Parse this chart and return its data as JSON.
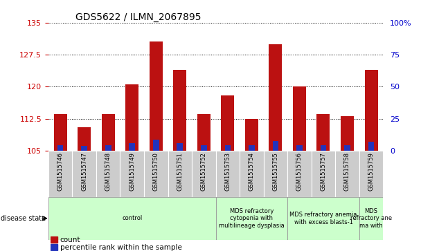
{
  "title": "GDS5622 / ILMN_2067895",
  "samples": [
    "GSM1515746",
    "GSM1515747",
    "GSM1515748",
    "GSM1515749",
    "GSM1515750",
    "GSM1515751",
    "GSM1515752",
    "GSM1515753",
    "GSM1515754",
    "GSM1515755",
    "GSM1515756",
    "GSM1515757",
    "GSM1515758",
    "GSM1515759"
  ],
  "count_values": [
    113.5,
    110.5,
    113.5,
    120.5,
    130.5,
    124.0,
    113.5,
    118.0,
    112.5,
    130.0,
    120.0,
    113.5,
    113.0,
    124.0
  ],
  "percentile_top": [
    106.3,
    106.1,
    106.3,
    106.8,
    107.5,
    106.8,
    106.3,
    106.3,
    106.3,
    107.2,
    106.3,
    106.3,
    106.3,
    107.0
  ],
  "ymin": 105,
  "ymax": 135,
  "yticks": [
    105,
    112.5,
    120,
    127.5,
    135
  ],
  "ytick_labels": [
    "105",
    "112.5",
    "120",
    "127.5",
    "135"
  ],
  "right_yticks_val": [
    0,
    25,
    50,
    75,
    100
  ],
  "right_ytick_labels": [
    "0",
    "25",
    "50",
    "75",
    "100%"
  ],
  "bar_color": "#BB1111",
  "percentile_color": "#2233BB",
  "bar_width": 0.55,
  "perc_bar_width": 0.25,
  "tick_label_color_left": "#CC0000",
  "tick_label_color_right": "#0000CC",
  "group_boundaries": [
    {
      "start": 0,
      "end": 7,
      "label": "control"
    },
    {
      "start": 7,
      "end": 10,
      "label": "MDS refractory\ncytopenia with\nmultilineage dysplasia"
    },
    {
      "start": 10,
      "end": 13,
      "label": "MDS refractory anemia\nwith excess blasts-1"
    },
    {
      "start": 13,
      "end": 14,
      "label": "MDS\nrefractory ane\nma with"
    }
  ],
  "group_color": "#CCFFCC",
  "disease_state_label": "disease state",
  "legend_count_label": "count",
  "legend_percentile_label": "percentile rank within the sample"
}
